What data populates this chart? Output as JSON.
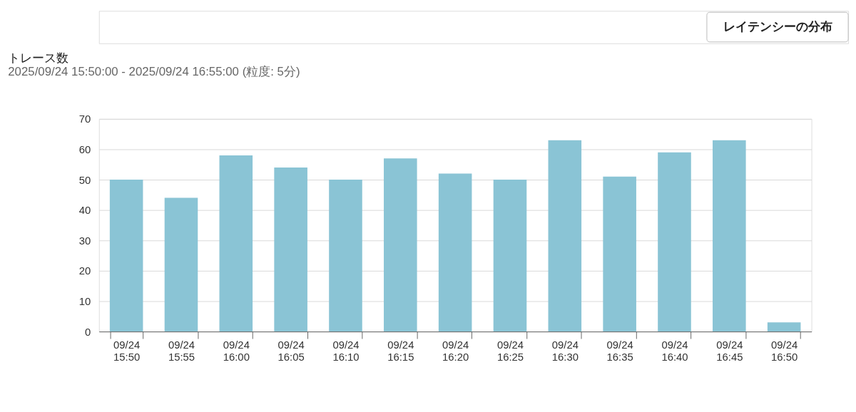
{
  "chart_data": {
    "type": "bar",
    "title": "トレース数",
    "subtitle": "2025/09/24 15:50:00 - 2025/09/24 16:55:00 (粒度: 5分)",
    "categories": [
      "09/24\n15:50",
      "09/24\n15:55",
      "09/24\n16:00",
      "09/24\n16:05",
      "09/24\n16:10",
      "09/24\n16:15",
      "09/24\n16:20",
      "09/24\n16:25",
      "09/24\n16:30",
      "09/24\n16:35",
      "09/24\n16:40",
      "09/24\n16:45",
      "09/24\n16:50"
    ],
    "values": [
      50,
      44,
      58,
      54,
      50,
      57,
      52,
      50,
      63,
      51,
      59,
      63,
      3
    ],
    "color": "#8ac4d5",
    "ylim": [
      0,
      70
    ],
    "yticks": [
      0,
      10,
      20,
      30,
      40,
      50,
      60,
      70
    ],
    "grid": "y",
    "annotations": [
      "レイテンシーの分布"
    ]
  }
}
